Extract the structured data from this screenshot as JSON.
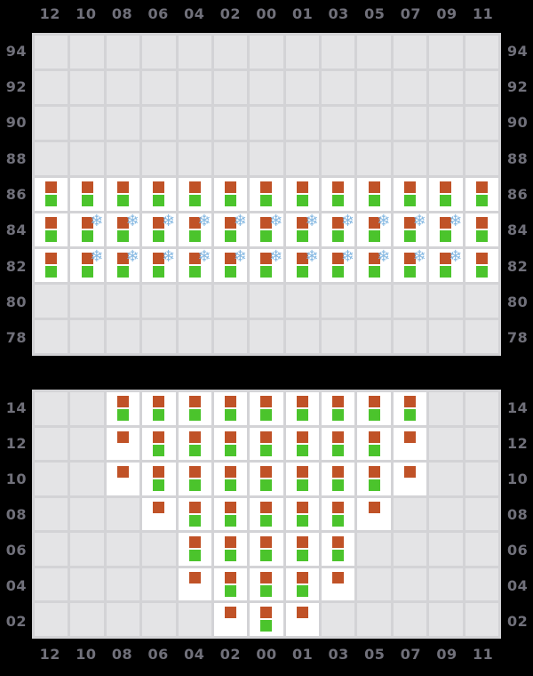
{
  "chart_data": {
    "type": "heatmap",
    "x_labels": [
      "12",
      "10",
      "08",
      "06",
      "04",
      "02",
      "00",
      "01",
      "03",
      "05",
      "07",
      "09",
      "11"
    ],
    "panels": [
      {
        "id": "top",
        "y_labels": [
          "94",
          "92",
          "90",
          "88",
          "86",
          "84",
          "82",
          "80",
          "78"
        ],
        "rows": [
          [
            "",
            "",
            "",
            "",
            "",
            "",
            "",
            "",
            "",
            "",
            "",
            "",
            ""
          ],
          [
            "",
            "",
            "",
            "",
            "",
            "",
            "",
            "",
            "",
            "",
            "",
            "",
            ""
          ],
          [
            "",
            "",
            "",
            "",
            "",
            "",
            "",
            "",
            "",
            "",
            "",
            "",
            ""
          ],
          [
            "",
            "",
            "",
            "",
            "",
            "",
            "",
            "",
            "",
            "",
            "",
            "",
            ""
          ],
          [
            "og",
            "og",
            "og",
            "og",
            "og",
            "og",
            "og",
            "og",
            "og",
            "og",
            "og",
            "og",
            "og"
          ],
          [
            "og",
            "ogs",
            "ogs",
            "ogs",
            "ogs",
            "ogs",
            "ogs",
            "ogs",
            "ogs",
            "ogs",
            "ogs",
            "ogs",
            "og"
          ],
          [
            "og",
            "ogs",
            "ogs",
            "ogs",
            "ogs",
            "ogs",
            "ogs",
            "ogs",
            "ogs",
            "ogs",
            "ogs",
            "ogs",
            "og"
          ],
          [
            "",
            "",
            "",
            "",
            "",
            "",
            "",
            "",
            "",
            "",
            "",
            "",
            ""
          ],
          [
            "",
            "",
            "",
            "",
            "",
            "",
            "",
            "",
            "",
            "",
            "",
            "",
            ""
          ]
        ]
      },
      {
        "id": "bottom",
        "y_labels": [
          "14",
          "12",
          "10",
          "08",
          "06",
          "04",
          "02"
        ],
        "rows": [
          [
            "",
            "",
            "og",
            "og",
            "og",
            "og",
            "og",
            "og",
            "og",
            "og",
            "og",
            "",
            ""
          ],
          [
            "",
            "",
            "o",
            "og",
            "og",
            "og",
            "og",
            "og",
            "og",
            "og",
            "o",
            "",
            ""
          ],
          [
            "",
            "",
            "o",
            "og",
            "og",
            "og",
            "og",
            "og",
            "og",
            "og",
            "o",
            "",
            ""
          ],
          [
            "",
            "",
            "",
            "o",
            "og",
            "og",
            "og",
            "og",
            "og",
            "o",
            "",
            "",
            ""
          ],
          [
            "",
            "",
            "",
            "",
            "og",
            "og",
            "og",
            "og",
            "og",
            "",
            "",
            "",
            ""
          ],
          [
            "",
            "",
            "",
            "",
            "o",
            "og",
            "og",
            "og",
            "o",
            "",
            "",
            "",
            ""
          ],
          [
            "",
            "",
            "",
            "",
            "",
            "o",
            "og",
            "o",
            "",
            "",
            "",
            "",
            ""
          ]
        ]
      }
    ],
    "cell_codes": {
      "o": "orange-marker",
      "g": "green-marker",
      "s": "snowflake-icon"
    },
    "snowflake_glyph": "❄",
    "layout": {
      "grid_on": true,
      "x_axis_position": "top panel: labels above; bottom panel: labels below",
      "y_axis_position": "labels on both left and right sides"
    },
    "colors": {
      "page_background": "#000000",
      "plot_background": "#e4e4e6",
      "gridline": "#d3d3d6",
      "active_cell": "#ffffff",
      "orange_marker": "#c05227",
      "green_marker": "#4bc42c",
      "snowflake": "#85b8e2",
      "axis_label": "#70707a"
    }
  }
}
